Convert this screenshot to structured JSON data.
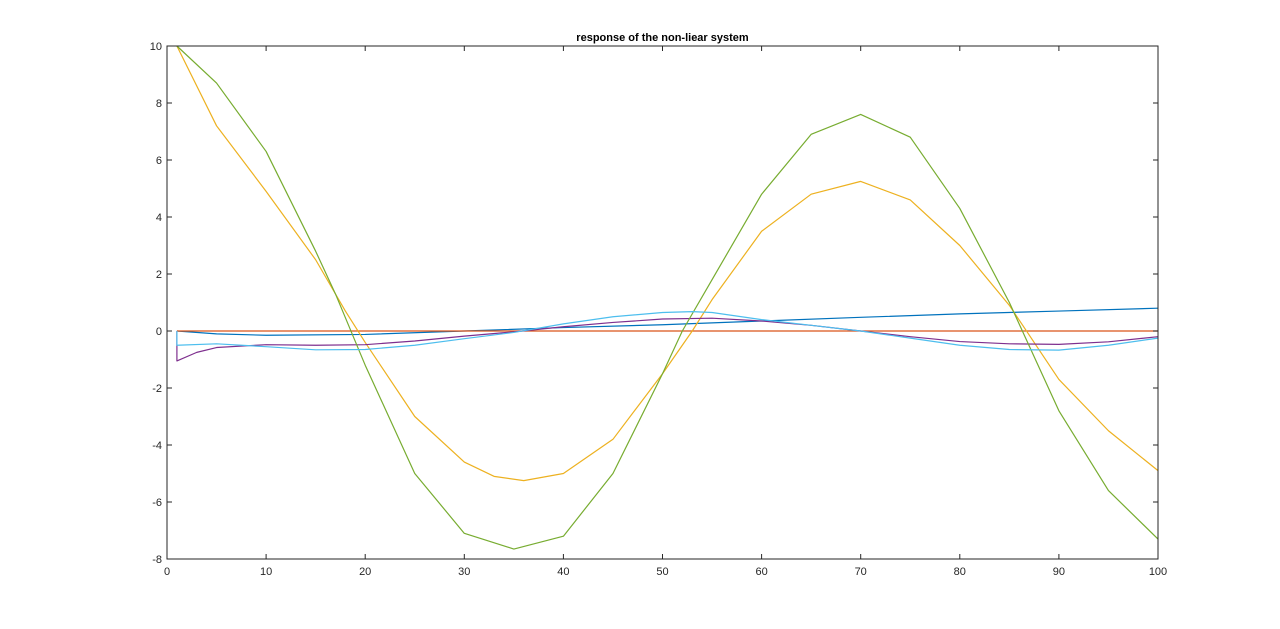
{
  "chart_data": {
    "type": "line",
    "title": "response of the non-liear system",
    "xlabel": "",
    "ylabel": "",
    "xlim": [
      0,
      100
    ],
    "ylim": [
      -8,
      10
    ],
    "xticks": [
      0,
      10,
      20,
      30,
      40,
      50,
      60,
      70,
      80,
      90,
      100
    ],
    "yticks": [
      -8,
      -6,
      -4,
      -2,
      0,
      2,
      4,
      6,
      8,
      10
    ],
    "grid": false,
    "box": true,
    "series": [
      {
        "color": "#0072BD",
        "points": [
          [
            1,
            0
          ],
          [
            5,
            -0.1
          ],
          [
            10,
            -0.15
          ],
          [
            20,
            -0.12
          ],
          [
            30,
            0
          ],
          [
            40,
            0.12
          ],
          [
            50,
            0.22
          ],
          [
            60,
            0.35
          ],
          [
            70,
            0.48
          ],
          [
            80,
            0.6
          ],
          [
            90,
            0.7
          ],
          [
            100,
            0.8
          ]
        ]
      },
      {
        "color": "#D95319",
        "points": [
          [
            1,
            0
          ],
          [
            100,
            0
          ]
        ]
      },
      {
        "color": "#EDB120",
        "points": [
          [
            1,
            10
          ],
          [
            5,
            7.2
          ],
          [
            10,
            4.9
          ],
          [
            15,
            2.5
          ],
          [
            18,
            0.7
          ],
          [
            20,
            -0.4
          ],
          [
            25,
            -3
          ],
          [
            30,
            -4.6
          ],
          [
            33,
            -5.1
          ],
          [
            36,
            -5.25
          ],
          [
            40,
            -5
          ],
          [
            45,
            -3.8
          ],
          [
            50,
            -1.5
          ],
          [
            53,
            0
          ],
          [
            55,
            1.1
          ],
          [
            60,
            3.5
          ],
          [
            65,
            4.8
          ],
          [
            70,
            5.25
          ],
          [
            75,
            4.6
          ],
          [
            80,
            3.0
          ],
          [
            85,
            0.9
          ],
          [
            90,
            -1.7
          ],
          [
            95,
            -3.5
          ],
          [
            100,
            -4.9
          ]
        ]
      },
      {
        "color": "#7E2F8E",
        "points": [
          [
            1,
            0
          ],
          [
            1,
            -1.05
          ],
          [
            3,
            -0.75
          ],
          [
            5,
            -0.58
          ],
          [
            10,
            -0.48
          ],
          [
            15,
            -0.5
          ],
          [
            20,
            -0.48
          ],
          [
            25,
            -0.35
          ],
          [
            30,
            -0.18
          ],
          [
            35,
            -0.03
          ],
          [
            40,
            0.15
          ],
          [
            45,
            0.3
          ],
          [
            50,
            0.42
          ],
          [
            55,
            0.45
          ],
          [
            60,
            0.35
          ],
          [
            65,
            0.2
          ],
          [
            70,
            0
          ],
          [
            75,
            -0.2
          ],
          [
            80,
            -0.37
          ],
          [
            85,
            -0.45
          ],
          [
            90,
            -0.47
          ],
          [
            95,
            -0.38
          ],
          [
            100,
            -0.2
          ]
        ]
      },
      {
        "color": "#77AC30",
        "points": [
          [
            1,
            10
          ],
          [
            5,
            8.7
          ],
          [
            10,
            6.3
          ],
          [
            15,
            2.8
          ],
          [
            17,
            1.3
          ],
          [
            20,
            -1.2
          ],
          [
            25,
            -5
          ],
          [
            30,
            -7.1
          ],
          [
            35,
            -7.65
          ],
          [
            40,
            -7.2
          ],
          [
            45,
            -5
          ],
          [
            50,
            -1.5
          ],
          [
            52,
            0
          ],
          [
            55,
            1.8
          ],
          [
            60,
            4.8
          ],
          [
            65,
            6.9
          ],
          [
            70,
            7.6
          ],
          [
            75,
            6.8
          ],
          [
            80,
            4.3
          ],
          [
            85,
            1.0
          ],
          [
            90,
            -2.8
          ],
          [
            95,
            -5.6
          ],
          [
            100,
            -7.3
          ]
        ]
      },
      {
        "color": "#4DBEEE",
        "points": [
          [
            1,
            0
          ],
          [
            1,
            -0.5
          ],
          [
            5,
            -0.45
          ],
          [
            10,
            -0.55
          ],
          [
            15,
            -0.66
          ],
          [
            20,
            -0.65
          ],
          [
            25,
            -0.5
          ],
          [
            30,
            -0.27
          ],
          [
            35,
            -0.05
          ],
          [
            40,
            0.25
          ],
          [
            45,
            0.5
          ],
          [
            50,
            0.65
          ],
          [
            53,
            0.68
          ],
          [
            55,
            0.65
          ],
          [
            60,
            0.4
          ],
          [
            65,
            0.2
          ],
          [
            70,
            0
          ],
          [
            75,
            -0.25
          ],
          [
            80,
            -0.5
          ],
          [
            85,
            -0.65
          ],
          [
            90,
            -0.67
          ],
          [
            95,
            -0.5
          ],
          [
            100,
            -0.25
          ]
        ]
      }
    ]
  }
}
